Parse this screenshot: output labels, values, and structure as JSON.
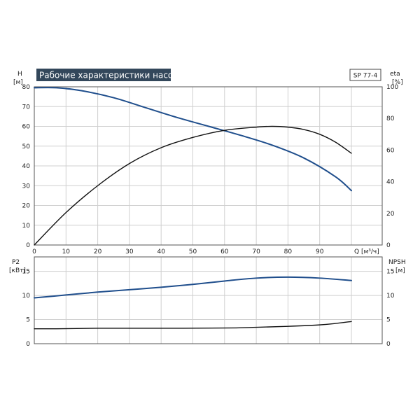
{
  "chart_data": [
    {
      "type": "line",
      "title": "Рабочие характеристики насоса",
      "badge": "SP 77-4",
      "xlabel": "Q [м³/ч]",
      "ylabel": "H",
      "ylabel_unit": "[м]",
      "y2label": "eta",
      "y2label_unit": "[%]",
      "xlim": [
        0,
        100
      ],
      "ylim": [
        0,
        80
      ],
      "y2lim": [
        0,
        100
      ],
      "x_ticks": [
        "0",
        "10",
        "20",
        "30",
        "40",
        "50",
        "60",
        "70",
        "80",
        "90"
      ],
      "y_ticks": [
        "0",
        "10",
        "20",
        "30",
        "40",
        "50",
        "60",
        "70",
        "80"
      ],
      "y2_ticks": [
        "0",
        "20",
        "40",
        "60",
        "80",
        "100"
      ],
      "grid": true,
      "series": [
        {
          "axis": "left",
          "color": "#1f4e8c",
          "x": [
            0,
            7,
            15,
            25,
            35,
            45,
            55,
            65,
            75,
            85,
            95,
            100
          ],
          "y": [
            79.5,
            79.5,
            78,
            74.5,
            69.5,
            64.5,
            60,
            55.5,
            50.5,
            44,
            34.5,
            27.5
          ]
        },
        {
          "axis": "right",
          "color": "#111111",
          "x": [
            0,
            10,
            20,
            30,
            40,
            50,
            60,
            70,
            75,
            80,
            85,
            90,
            95,
            100
          ],
          "y": [
            0,
            20.5,
            37.5,
            51.5,
            61.5,
            68,
            72.5,
            74.5,
            75,
            74.5,
            73,
            70,
            65,
            58
          ]
        }
      ]
    },
    {
      "type": "line",
      "ylabel": "P2",
      "ylabel_unit": "[кВт]",
      "y2label": "NPSH",
      "y2label_unit": "[м]",
      "xlim": [
        0,
        100
      ],
      "ylim": [
        0,
        18
      ],
      "y2lim": [
        0,
        18
      ],
      "y_ticks": [
        "0",
        "5",
        "10",
        "15"
      ],
      "y2_ticks": [
        "0",
        "5",
        "10",
        "15"
      ],
      "grid": true,
      "series": [
        {
          "axis": "left",
          "color": "#1f4e8c",
          "x": [
            0,
            10,
            20,
            30,
            40,
            50,
            60,
            70,
            80,
            90,
            100
          ],
          "y": [
            9.5,
            10.1,
            10.7,
            11.2,
            11.7,
            12.3,
            13,
            13.6,
            13.8,
            13.6,
            13.1
          ]
        },
        {
          "axis": "right",
          "color": "#111111",
          "x": [
            0,
            7,
            20,
            40,
            60,
            70,
            80,
            90,
            95,
            100
          ],
          "y": [
            3.1,
            3.1,
            3.2,
            3.2,
            3.25,
            3.4,
            3.6,
            3.9,
            4.2,
            4.6
          ]
        }
      ]
    }
  ]
}
